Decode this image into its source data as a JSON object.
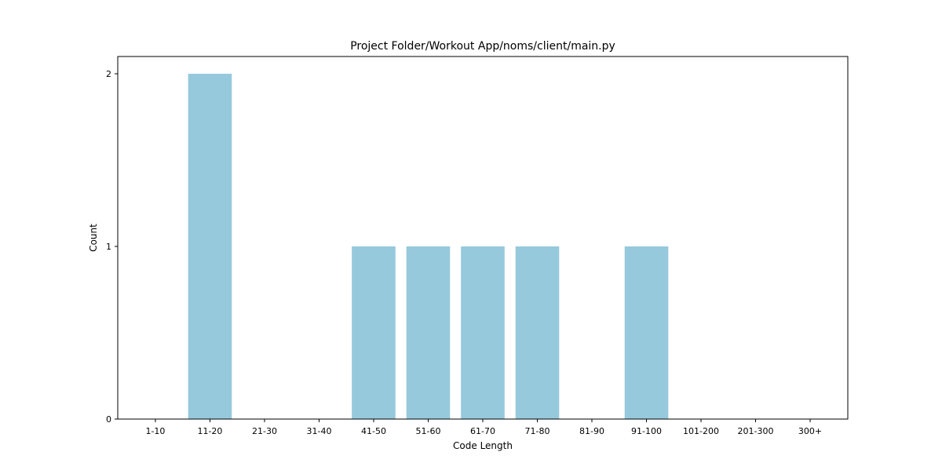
{
  "chart_data": {
    "type": "bar",
    "title": "Project Folder/Workout App/noms/client/main.py",
    "xlabel": "Code Length",
    "ylabel": "Count",
    "categories": [
      "1-10",
      "11-20",
      "21-30",
      "31-40",
      "41-50",
      "51-60",
      "61-70",
      "71-80",
      "81-90",
      "91-100",
      "101-200",
      "201-300",
      "300+"
    ],
    "values": [
      0,
      2,
      0,
      0,
      1,
      1,
      1,
      1,
      0,
      1,
      0,
      0,
      0
    ],
    "yticks": [
      0,
      1,
      2
    ],
    "ylim": [
      0,
      2.1
    ],
    "grid": false,
    "bar_color": "#96c9dc"
  }
}
